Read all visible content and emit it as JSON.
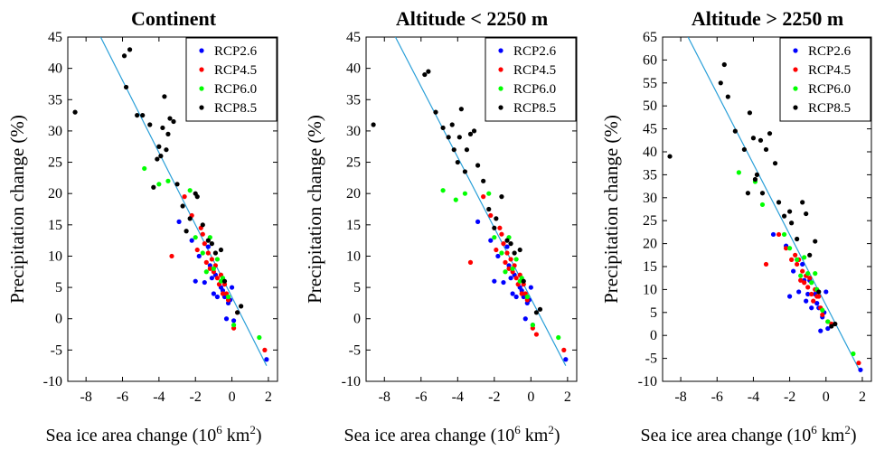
{
  "chart_data": [
    {
      "type": "scatter",
      "title": "Continent",
      "xlabel_main": "Sea ice area change (10",
      "xlabel_sup": "6",
      "xlabel_unit": " km",
      "xlabel_sup2": "2",
      "xlabel_close": ")",
      "ylabel": "Precipitation change (%)",
      "xlim": [
        -9,
        2.5
      ],
      "ylim": [
        -10,
        45
      ],
      "xticks": [
        -8,
        -6,
        -4,
        -2,
        0,
        2
      ],
      "yticks": [
        -10,
        -5,
        0,
        5,
        10,
        15,
        20,
        25,
        30,
        35,
        40,
        45
      ],
      "legend": [
        "RCP2.6",
        "RCP4.5",
        "RCP6.0",
        "RCP8.5"
      ],
      "colors": [
        "#0000ff",
        "#ff0000",
        "#00ff00",
        "#000000"
      ],
      "fit_line": {
        "x": [
          -7.2,
          1.9
        ],
        "y": [
          45,
          -7.5
        ],
        "color": "#2a9fd8"
      },
      "series": [
        {
          "name": "RCP2.6",
          "x": [
            -2.9,
            -2.2,
            -2.0,
            -1.8,
            -1.5,
            -1.3,
            -1.2,
            -1.1,
            -1.0,
            -0.9,
            -0.8,
            -0.6,
            -0.5,
            -0.4,
            -0.3,
            -0.2,
            -0.1,
            0.0,
            0.1,
            1.9
          ],
          "y": [
            15.5,
            12.5,
            6.0,
            10.0,
            5.8,
            11.5,
            8.5,
            6.5,
            4.0,
            7.0,
            3.5,
            5.0,
            4.5,
            3.5,
            0.0,
            2.5,
            3.0,
            5.0,
            -0.3,
            -6.5
          ]
        },
        {
          "name": "RCP4.5",
          "x": [
            -3.3,
            -2.6,
            -2.2,
            -1.9,
            -1.7,
            -1.6,
            -1.5,
            -1.4,
            -1.3,
            -1.2,
            -1.1,
            -1.0,
            -0.9,
            -0.8,
            -0.7,
            -0.6,
            -0.5,
            -0.4,
            -0.3,
            -0.2,
            0.1,
            0.3,
            1.8
          ],
          "y": [
            10.0,
            19.5,
            16.5,
            11.0,
            14.5,
            13.5,
            12.0,
            9.0,
            10.5,
            8.0,
            9.5,
            7.5,
            8.5,
            6.5,
            5.5,
            7.0,
            4.0,
            5.5,
            4.0,
            3.0,
            -1.5,
            1.0,
            -5.0
          ]
        },
        {
          "name": "RCP6.0",
          "x": [
            -4.8,
            -4.0,
            -3.5,
            -2.3,
            -2.0,
            -1.6,
            -1.4,
            -1.2,
            -1.0,
            -0.8,
            -0.6,
            -0.5,
            -0.2,
            0.1,
            1.5
          ],
          "y": [
            24.0,
            21.5,
            22.0,
            20.5,
            13.0,
            10.5,
            7.5,
            13.0,
            8.0,
            9.5,
            6.0,
            6.5,
            3.5,
            -1.0,
            -3.0
          ]
        },
        {
          "name": "RCP8.5",
          "x": [
            -8.6,
            -5.9,
            -5.8,
            -5.6,
            -5.2,
            -4.9,
            -4.5,
            -4.3,
            -4.1,
            -4.0,
            -3.9,
            -3.8,
            -3.7,
            -3.6,
            -3.5,
            -3.4,
            -3.2,
            -3.0,
            -2.7,
            -2.5,
            -2.3,
            -2.0,
            -1.9,
            -1.6,
            -1.3,
            -1.1,
            -0.9,
            -0.6,
            -0.4,
            0.3,
            0.5
          ],
          "y": [
            33.0,
            42.0,
            37.0,
            43.0,
            32.5,
            32.5,
            31.0,
            21.0,
            25.5,
            27.5,
            26.0,
            30.5,
            35.5,
            27.0,
            29.5,
            32.0,
            31.5,
            21.5,
            18.0,
            14.0,
            16.0,
            20.0,
            19.5,
            15.0,
            12.5,
            12.0,
            10.5,
            11.0,
            6.0,
            1.0,
            2.0
          ]
        }
      ]
    },
    {
      "type": "scatter",
      "title": "Altitude < 2250 m",
      "xlabel_main": "Sea ice area change (10",
      "xlabel_sup": "6",
      "xlabel_unit": " km",
      "xlabel_sup2": "2",
      "xlabel_close": ")",
      "ylabel": "Precipitation change (%)",
      "xlim": [
        -9,
        2.5
      ],
      "ylim": [
        -10,
        45
      ],
      "xticks": [
        -8,
        -6,
        -4,
        -2,
        0,
        2
      ],
      "yticks": [
        -10,
        -5,
        0,
        5,
        10,
        15,
        20,
        25,
        30,
        35,
        40,
        45
      ],
      "legend": [
        "RCP2.6",
        "RCP4.5",
        "RCP6.0",
        "RCP8.5"
      ],
      "colors": [
        "#0000ff",
        "#ff0000",
        "#00ff00",
        "#000000"
      ],
      "fit_line": {
        "x": [
          -7.4,
          1.9
        ],
        "y": [
          45,
          -7.5
        ],
        "color": "#2a9fd8"
      },
      "series": [
        {
          "name": "RCP2.6",
          "x": [
            -2.9,
            -2.2,
            -2.0,
            -1.8,
            -1.5,
            -1.3,
            -1.2,
            -1.1,
            -1.0,
            -0.9,
            -0.8,
            -0.6,
            -0.5,
            -0.4,
            -0.3,
            -0.2,
            -0.1,
            0.0,
            0.1,
            1.9
          ],
          "y": [
            15.5,
            12.5,
            6.0,
            10.0,
            5.8,
            11.5,
            8.5,
            6.5,
            4.0,
            7.0,
            3.5,
            5.0,
            4.5,
            3.5,
            0.0,
            2.5,
            3.0,
            5.0,
            -1.0,
            -6.5
          ]
        },
        {
          "name": "RCP4.5",
          "x": [
            -3.3,
            -2.6,
            -2.2,
            -1.9,
            -1.7,
            -1.6,
            -1.5,
            -1.4,
            -1.3,
            -1.2,
            -1.1,
            -1.0,
            -0.9,
            -0.8,
            -0.7,
            -0.6,
            -0.5,
            -0.4,
            -0.3,
            -0.2,
            0.1,
            0.3,
            1.8
          ],
          "y": [
            9.0,
            19.5,
            16.5,
            11.0,
            14.5,
            13.5,
            12.0,
            9.0,
            10.5,
            8.0,
            9.5,
            7.5,
            8.5,
            6.5,
            5.5,
            7.0,
            4.0,
            5.5,
            4.0,
            3.0,
            -1.5,
            -2.5,
            -5.0
          ]
        },
        {
          "name": "RCP6.0",
          "x": [
            -4.8,
            -4.1,
            -3.6,
            -2.3,
            -2.0,
            -1.6,
            -1.4,
            -1.2,
            -1.0,
            -0.8,
            -0.6,
            -0.5,
            -0.2,
            0.1,
            1.5
          ],
          "y": [
            20.5,
            19.0,
            20.0,
            20.0,
            13.0,
            10.5,
            7.5,
            13.0,
            8.0,
            9.5,
            6.0,
            6.5,
            3.5,
            -1.0,
            -3.0
          ]
        },
        {
          "name": "RCP8.5",
          "x": [
            -8.6,
            -5.8,
            -5.6,
            -5.2,
            -4.8,
            -4.5,
            -4.3,
            -4.2,
            -4.0,
            -3.9,
            -3.8,
            -3.6,
            -3.5,
            -3.3,
            -3.1,
            -2.9,
            -2.6,
            -2.3,
            -2.0,
            -1.9,
            -1.6,
            -1.3,
            -1.1,
            -0.9,
            -0.6,
            -0.4,
            0.3,
            0.5
          ],
          "y": [
            31.0,
            39.0,
            39.5,
            33.0,
            30.5,
            29.0,
            31.0,
            27.0,
            25.0,
            29.0,
            33.5,
            23.5,
            27.0,
            29.5,
            30.0,
            24.5,
            22.0,
            17.5,
            14.5,
            16.0,
            19.5,
            12.5,
            12.0,
            10.5,
            11.0,
            6.0,
            1.0,
            1.5
          ]
        }
      ]
    },
    {
      "type": "scatter",
      "title": "Altitude > 2250 m",
      "xlabel_main": "Sea ice area change (10",
      "xlabel_sup": "6",
      "xlabel_unit": " km",
      "xlabel_sup2": "2",
      "xlabel_close": ")",
      "ylabel": "Precipitation change (%)",
      "xlim": [
        -9,
        2.5
      ],
      "ylim": [
        -10,
        65
      ],
      "xticks": [
        -8,
        -6,
        -4,
        -2,
        0,
        2
      ],
      "yticks": [
        -10,
        -5,
        0,
        5,
        10,
        15,
        20,
        25,
        30,
        35,
        40,
        45,
        50,
        55,
        60,
        65
      ],
      "legend": [
        "RCP2.6",
        "RCP4.5",
        "RCP6.0",
        "RCP8.5"
      ],
      "colors": [
        "#0000ff",
        "#ff0000",
        "#00ff00",
        "#000000"
      ],
      "fit_line": {
        "x": [
          -7.6,
          1.9
        ],
        "y": [
          65,
          -8
        ],
        "color": "#2a9fd8"
      },
      "series": [
        {
          "name": "RCP2.6",
          "x": [
            -2.9,
            -2.2,
            -2.0,
            -1.8,
            -1.5,
            -1.3,
            -1.2,
            -1.1,
            -1.0,
            -0.9,
            -0.8,
            -0.6,
            -0.5,
            -0.4,
            -0.3,
            -0.2,
            -0.1,
            0.0,
            0.1,
            1.9
          ],
          "y": [
            22.0,
            19.5,
            8.5,
            14.0,
            9.5,
            15.5,
            12.0,
            7.5,
            9.0,
            12.0,
            6.0,
            9.0,
            7.0,
            6.0,
            1.0,
            4.0,
            5.0,
            9.5,
            1.5,
            -7.5
          ]
        },
        {
          "name": "RCP4.5",
          "x": [
            -3.3,
            -2.6,
            -2.2,
            -1.9,
            -1.7,
            -1.6,
            -1.5,
            -1.4,
            -1.3,
            -1.2,
            -1.1,
            -1.0,
            -0.9,
            -0.8,
            -0.7,
            -0.6,
            -0.5,
            -0.4,
            -0.3,
            -0.2,
            0.1,
            0.3,
            1.8
          ],
          "y": [
            15.5,
            22.0,
            19.0,
            16.5,
            17.5,
            15.5,
            16.5,
            12.0,
            14.0,
            11.5,
            13.0,
            10.5,
            12.5,
            9.0,
            7.5,
            10.0,
            8.5,
            8.5,
            6.0,
            4.5,
            3.0,
            2.5,
            -6.0
          ]
        },
        {
          "name": "RCP6.0",
          "x": [
            -4.8,
            -3.9,
            -3.5,
            -2.3,
            -2.0,
            -1.6,
            -1.4,
            -1.2,
            -1.0,
            -0.8,
            -0.6,
            -0.5,
            -0.2,
            0.1,
            1.5
          ],
          "y": [
            35.5,
            33.5,
            28.5,
            22.0,
            19.0,
            16.5,
            13.0,
            17.0,
            13.5,
            11.5,
            13.5,
            10.0,
            5.5,
            3.0,
            -4.0
          ]
        },
        {
          "name": "RCP8.5",
          "x": [
            -8.6,
            -5.8,
            -5.6,
            -5.4,
            -5.0,
            -4.5,
            -4.3,
            -4.2,
            -4.0,
            -3.9,
            -3.8,
            -3.6,
            -3.5,
            -3.3,
            -3.1,
            -2.8,
            -2.6,
            -2.3,
            -2.0,
            -1.9,
            -1.6,
            -1.3,
            -1.1,
            -0.9,
            -0.6,
            -0.4,
            0.3,
            0.5
          ],
          "y": [
            39.0,
            55.0,
            59.0,
            52.0,
            44.5,
            40.5,
            31.0,
            48.5,
            43.0,
            34.0,
            35.0,
            42.5,
            31.0,
            40.5,
            44.0,
            37.5,
            29.0,
            26.0,
            27.0,
            24.5,
            21.0,
            29.0,
            26.5,
            17.5,
            20.5,
            9.5,
            2.0,
            2.5
          ]
        }
      ]
    }
  ]
}
